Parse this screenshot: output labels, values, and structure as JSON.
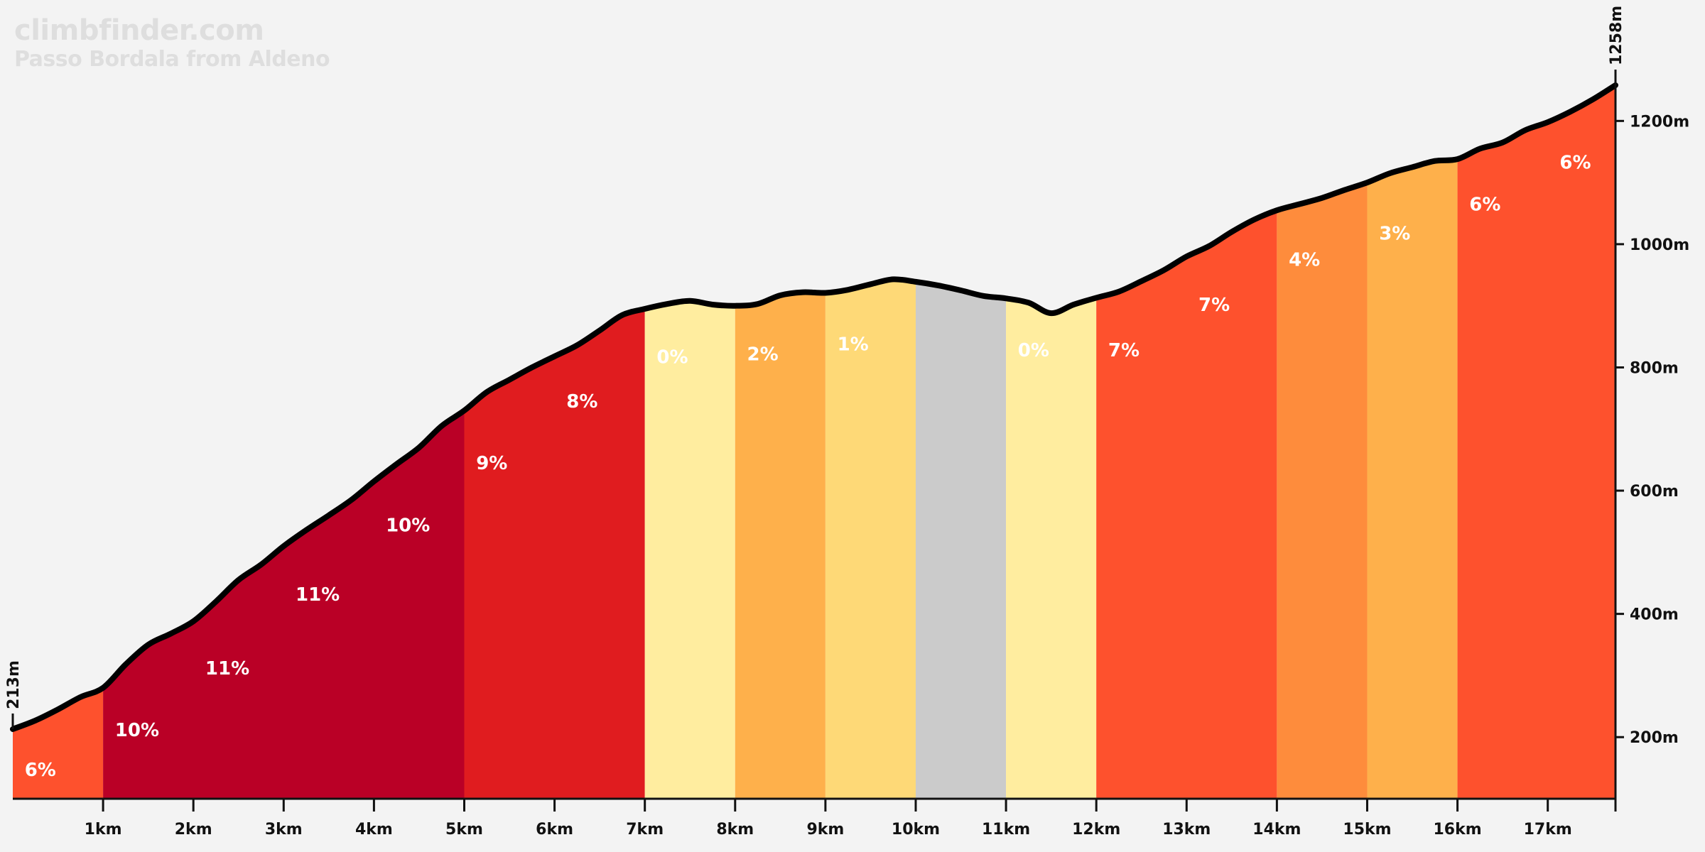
{
  "brand": {
    "site": "climbfinder.com",
    "subtitle": "Passo Bordala from Aldeno"
  },
  "chart_data": {
    "type": "area",
    "title": "Passo Bordala from Aldeno",
    "xlabel": "",
    "ylabel": "",
    "xlim": [
      0,
      17.75
    ],
    "ylim": [
      100,
      1258
    ],
    "x_ticks": [
      1,
      2,
      3,
      4,
      5,
      6,
      7,
      8,
      9,
      10,
      11,
      12,
      13,
      14,
      15,
      16,
      17
    ],
    "x_tick_labels": [
      "1km",
      "2km",
      "3km",
      "4km",
      "5km",
      "6km",
      "7km",
      "8km",
      "9km",
      "10km",
      "11km",
      "12km",
      "13km",
      "14km",
      "15km",
      "16km",
      "17km"
    ],
    "y_ticks": [
      200,
      400,
      600,
      800,
      1000,
      1200
    ],
    "y_tick_labels": [
      "200m",
      "400m",
      "600m",
      "800m",
      "1000m",
      "1200m"
    ],
    "start_label": "213m",
    "end_label": "1258m",
    "profile": {
      "x": [
        0,
        0.25,
        0.5,
        0.75,
        1,
        1.25,
        1.5,
        1.75,
        2,
        2.25,
        2.5,
        2.75,
        3,
        3.25,
        3.5,
        3.75,
        4,
        4.25,
        4.5,
        4.75,
        5,
        5.25,
        5.5,
        5.75,
        6,
        6.25,
        6.5,
        6.75,
        7,
        7.25,
        7.5,
        7.75,
        8,
        8.25,
        8.5,
        8.75,
        9,
        9.25,
        9.5,
        9.75,
        10,
        10.25,
        10.5,
        10.75,
        11,
        11.25,
        11.5,
        11.75,
        12,
        12.25,
        12.5,
        12.75,
        13,
        13.25,
        13.5,
        13.75,
        14,
        14.25,
        14.5,
        14.75,
        15,
        15.25,
        15.5,
        15.75,
        16,
        16.25,
        16.5,
        16.75,
        17,
        17.25,
        17.5,
        17.75
      ],
      "y": [
        213,
        227,
        245,
        265,
        280,
        318,
        350,
        368,
        388,
        420,
        455,
        480,
        510,
        536,
        560,
        585,
        615,
        643,
        670,
        705,
        730,
        760,
        780,
        800,
        818,
        836,
        860,
        885,
        895,
        903,
        908,
        902,
        900,
        903,
        917,
        922,
        921,
        926,
        935,
        943,
        939,
        933,
        925,
        916,
        912,
        905,
        888,
        902,
        913,
        923,
        940,
        958,
        980,
        997,
        1020,
        1040,
        1055,
        1065,
        1075,
        1088,
        1100,
        1115,
        1125,
        1135,
        1138,
        1155,
        1165,
        1185,
        1198,
        1215,
        1235,
        1258
      ]
    },
    "segments": [
      {
        "from": 0,
        "to": 1,
        "grade": "6%",
        "color": "#fe512d"
      },
      {
        "from": 1,
        "to": 5,
        "grade": "10%",
        "color": "#ba0026"
      },
      {
        "from": 5,
        "to": 7,
        "grade": "9%",
        "color": "#e01c1f"
      },
      {
        "from": 7,
        "to": 8,
        "grade": "0%",
        "color": "#ffed9f"
      },
      {
        "from": 8,
        "to": 9,
        "grade": "2%",
        "color": "#feb04b"
      },
      {
        "from": 9,
        "to": 10,
        "grade": "1%",
        "color": "#fed977"
      },
      {
        "from": 10,
        "to": 11,
        "grade": "",
        "color": "#cbcbcb"
      },
      {
        "from": 11,
        "to": 12,
        "grade": "0%",
        "color": "#ffed9f"
      },
      {
        "from": 12,
        "to": 14,
        "grade": "7%",
        "color": "#fe512d"
      },
      {
        "from": 14,
        "to": 15,
        "grade": "4%",
        "color": "#fe8c3c"
      },
      {
        "from": 15,
        "to": 16,
        "grade": "3%",
        "color": "#feb04b"
      },
      {
        "from": 16,
        "to": 17.75,
        "grade": "6%",
        "color": "#fe512d"
      }
    ],
    "grade_labels": [
      {
        "x": 0.1,
        "y": 147,
        "text": "6%"
      },
      {
        "x": 1.1,
        "y": 212,
        "text": "10%"
      },
      {
        "x": 2.1,
        "y": 312,
        "text": "11%"
      },
      {
        "x": 3.1,
        "y": 432,
        "text": "11%"
      },
      {
        "x": 4.1,
        "y": 544,
        "text": "10%"
      },
      {
        "x": 5.1,
        "y": 645,
        "text": "9%"
      },
      {
        "x": 6.1,
        "y": 745,
        "text": "8%"
      },
      {
        "x": 7.1,
        "y": 817,
        "text": "0%"
      },
      {
        "x": 8.1,
        "y": 822,
        "text": "2%"
      },
      {
        "x": 9.1,
        "y": 838,
        "text": "1%"
      },
      {
        "x": 11.1,
        "y": 828,
        "text": "0%"
      },
      {
        "x": 12.1,
        "y": 828,
        "text": "7%"
      },
      {
        "x": 13.1,
        "y": 902,
        "text": "7%"
      },
      {
        "x": 14.1,
        "y": 975,
        "text": "4%"
      },
      {
        "x": 15.1,
        "y": 1018,
        "text": "3%"
      },
      {
        "x": 16.1,
        "y": 1065,
        "text": "6%"
      },
      {
        "x": 17.1,
        "y": 1133,
        "text": "6%"
      }
    ]
  }
}
